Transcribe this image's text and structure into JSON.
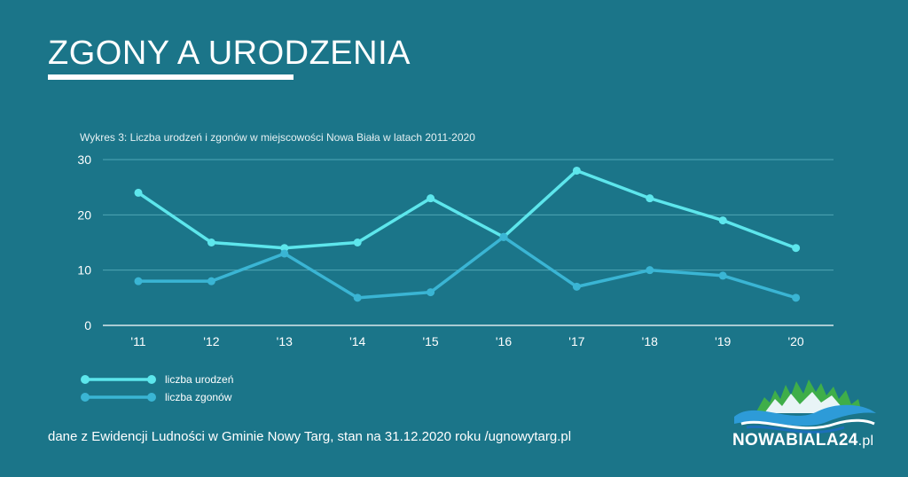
{
  "title": "ZGONY A URODZENIA",
  "subtitle": "Wykres 3: Liczba urodzeń i zgonów w miejscowości Nowa Biała w latach 2011-2020",
  "footer": "dane z Ewidencji Ludności w Gminie Nowy Targ, stan na 31.12.2020 roku /ugnowytarg.pl",
  "logo": {
    "name": "NOWABIALA24",
    "suffix": ".pl"
  },
  "colors": {
    "background": "#1b7589",
    "births": "#5de6ec",
    "deaths": "#3ab5d4",
    "grid": "#4fa6b6"
  },
  "chart_data": {
    "type": "line",
    "title": "Wykres 3: Liczba urodzeń i zgonów w miejscowości Nowa Biała w latach 2011-2020",
    "xlabel": "",
    "ylabel": "",
    "categories": [
      "'11",
      "'12",
      "'13",
      "'14",
      "'15",
      "'16",
      "'17",
      "'18",
      "'19",
      "'20"
    ],
    "ylim": [
      0,
      30
    ],
    "yticks": [
      0,
      10,
      20,
      30
    ],
    "grid": true,
    "legend_position": "bottom-left",
    "series": [
      {
        "name": "liczba urodzeń",
        "color": "#5de6ec",
        "values": [
          24,
          15,
          14,
          15,
          23,
          16,
          28,
          23,
          19,
          14
        ]
      },
      {
        "name": "liczba zgonów",
        "color": "#3ab5d4",
        "values": [
          8,
          8,
          13,
          5,
          6,
          16,
          7,
          10,
          9,
          5
        ]
      }
    ]
  }
}
